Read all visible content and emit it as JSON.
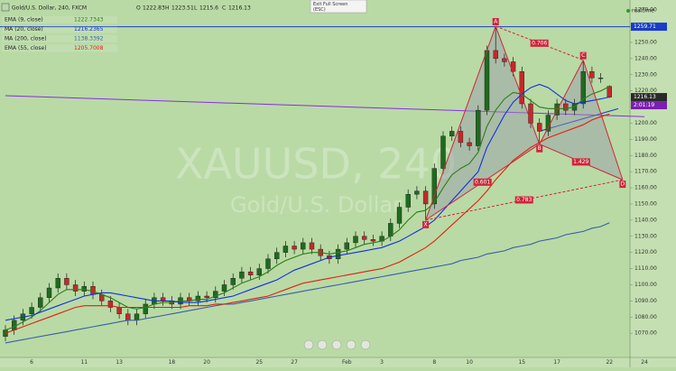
{
  "header": {
    "symbol": "Gold/U.S. Dollar, 240, FXCM",
    "open_label": "O",
    "open": 1222.83,
    "high_label": "H",
    "high": 1223.51,
    "low_label": "L",
    "low": 1215.6,
    "close_label": "C",
    "close": 1216.13,
    "tooltip": "Exit Full Screen\n(ESC)",
    "mode": "realtime"
  },
  "watermark": {
    "symbol": "XAUUSD, 240",
    "name": "Gold/U.S. Dollar"
  },
  "chart_data": {
    "type": "candlestick",
    "categories": [
      null,
      null,
      null,
      "6",
      null,
      null,
      null,
      null,
      null,
      "11",
      null,
      null,
      null,
      "13",
      null,
      null,
      null,
      null,
      null,
      "18",
      null,
      null,
      null,
      "20",
      null,
      null,
      null,
      null,
      null,
      "25",
      null,
      null,
      null,
      "27",
      null,
      null,
      null,
      null,
      null,
      "Feb",
      null,
      null,
      null,
      "3",
      null,
      null,
      null,
      null,
      null,
      "8",
      null,
      null,
      null,
      "10",
      null,
      null,
      null,
      null,
      null,
      "15",
      null,
      null,
      null,
      "17",
      null,
      null,
      null,
      null,
      null,
      "22",
      null,
      null,
      null,
      "24"
    ],
    "open": [
      1068,
      1072,
      1078,
      1082,
      1086,
      1092,
      1098,
      1104,
      1100,
      1096,
      1099,
      1094,
      1090,
      1086,
      1082,
      1078,
      1082,
      1088,
      1092,
      1090,
      1088,
      1092,
      1090,
      1093,
      1092,
      1096,
      1100,
      1104,
      1108,
      1106,
      1110,
      1116,
      1120,
      1124,
      1122,
      1126,
      1122,
      1118,
      1116,
      1122,
      1126,
      1130,
      1128,
      1127,
      1130,
      1138,
      1148,
      1156,
      1158,
      1150,
      1172,
      1192,
      1195,
      1188,
      1186,
      1208,
      1245,
      1240,
      1238,
      1232,
      1212,
      1200,
      1195,
      1205,
      1212,
      1208,
      1212,
      1232,
      1228,
      1222.83,
      null,
      null,
      null,
      null
    ],
    "high": [
      1075,
      1081,
      1085,
      1089,
      1095,
      1101,
      1107,
      1107,
      1103,
      1102,
      1102,
      1097,
      1093,
      1089,
      1085,
      1085,
      1091,
      1095,
      1095,
      1093,
      1095,
      1095,
      1096,
      1096,
      1099,
      1103,
      1107,
      1111,
      1111,
      1113,
      1119,
      1123,
      1127,
      1127,
      1129,
      1129,
      1125,
      1121,
      1125,
      1129,
      1133,
      1133,
      1131,
      1133,
      1141,
      1151,
      1159,
      1161,
      1161,
      1175,
      1195,
      1198,
      1198,
      1191,
      1211,
      1248,
      1260,
      1243,
      1241,
      1235,
      1215,
      1203,
      1208,
      1215,
      1215,
      1215,
      1239,
      1235,
      1231,
      1223.51,
      null,
      null,
      null,
      null
    ],
    "low": [
      1065,
      1069,
      1075,
      1079,
      1083,
      1089,
      1095,
      1097,
      1093,
      1093,
      1091,
      1087,
      1083,
      1079,
      1075,
      1075,
      1079,
      1085,
      1087,
      1085,
      1085,
      1087,
      1087,
      1089,
      1089,
      1093,
      1097,
      1101,
      1103,
      1103,
      1107,
      1113,
      1117,
      1119,
      1119,
      1119,
      1115,
      1113,
      1113,
      1119,
      1123,
      1125,
      1124,
      1124,
      1127,
      1135,
      1145,
      1153,
      1140,
      1147,
      1169,
      1189,
      1185,
      1183,
      1183,
      1205,
      1237,
      1235,
      1229,
      1209,
      1197,
      1187,
      1192,
      1202,
      1205,
      1205,
      1209,
      1225,
      1225,
      1215.6,
      null,
      null,
      null,
      null
    ],
    "close": [
      1072,
      1078,
      1082,
      1086,
      1092,
      1098,
      1104,
      1100,
      1096,
      1099,
      1094,
      1090,
      1086,
      1082,
      1078,
      1082,
      1088,
      1092,
      1090,
      1088,
      1092,
      1090,
      1093,
      1092,
      1096,
      1100,
      1104,
      1108,
      1106,
      1110,
      1116,
      1120,
      1124,
      1122,
      1126,
      1122,
      1118,
      1116,
      1122,
      1126,
      1130,
      1128,
      1127,
      1130,
      1138,
      1148,
      1156,
      1158,
      1150,
      1172,
      1192,
      1195,
      1188,
      1186,
      1208,
      1245,
      1240,
      1238,
      1232,
      1212,
      1200,
      1195,
      1205,
      1212,
      1208,
      1212,
      1232,
      1228,
      1228,
      1216.13,
      null,
      null,
      null,
      null
    ],
    "up_color": "#1e6b1e",
    "down_color": "#c62828",
    "series": [
      {
        "name": "EMA (9, close)",
        "color": "#2e7d1a",
        "values": [
          1072,
          1074,
          1077,
          1080,
          1084,
          1089,
          1094,
          1097,
          1097,
          1097,
          1096,
          1094,
          1092,
          1089,
          1086,
          1085,
          1086,
          1088,
          1089,
          1089,
          1090,
          1090,
          1091,
          1091,
          1093,
          1095,
          1098,
          1101,
          1103,
          1105,
          1108,
          1112,
          1115,
          1117,
          1119,
          1120,
          1120,
          1119,
          1120,
          1121,
          1123,
          1125,
          1126,
          1127,
          1130,
          1134,
          1140,
          1145,
          1146,
          1151,
          1160,
          1168,
          1172,
          1175,
          1182,
          1198,
          1208,
          1215,
          1219,
          1218,
          1214,
          1210,
          1209,
          1209,
          1209,
          1210,
          1215,
          1218,
          1220,
          1222.7343,
          null,
          null,
          null,
          null
        ]
      },
      {
        "name": "MA (20, close)",
        "color": "#1030e0",
        "values": [
          1078,
          1079,
          1080,
          1081,
          1083,
          1085,
          1087,
          1089,
          1091,
          1093,
          1094,
          1095,
          1095,
          1094,
          1093,
          1092,
          1091,
          1090,
          1090,
          1090,
          1089,
          1089,
          1089,
          1090,
          1091,
          1092,
          1093,
          1095,
          1097,
          1099,
          1101,
          1103,
          1106,
          1109,
          1111,
          1113,
          1115,
          1117,
          1118,
          1119,
          1120,
          1121,
          1122,
          1123,
          1125,
          1127,
          1130,
          1133,
          1136,
          1140,
          1146,
          1152,
          1158,
          1164,
          1170,
          1185,
          1195,
          1205,
          1213,
          1218,
          1222,
          1224,
          1222,
          1218,
          1214,
          1212,
          1213,
          1214,
          1215,
          1216.2365,
          null,
          null,
          null,
          null
        ]
      },
      {
        "name": "MA (200, close)",
        "color": "#3a5fa8",
        "values": [
          1064,
          1065,
          1066,
          1067,
          1068,
          1069,
          1070,
          1071,
          1072,
          1073,
          1074,
          1075,
          1076,
          1077,
          1078,
          1078,
          1079,
          1080,
          1081,
          1082,
          1083,
          1084,
          1085,
          1086,
          1087,
          1088,
          1088,
          1089,
          1090,
          1091,
          1092,
          1093,
          1094,
          1095,
          1096,
          1097,
          1098,
          1099,
          1100,
          1101,
          1102,
          1103,
          1104,
          1105,
          1106,
          1107,
          1108,
          1109,
          1110,
          1111,
          1112,
          1113,
          1115,
          1116,
          1117,
          1119,
          1120,
          1121,
          1123,
          1124,
          1125,
          1127,
          1128,
          1129,
          1131,
          1132,
          1133,
          1135,
          1136,
          1138.3392,
          null,
          null,
          null,
          null
        ]
      },
      {
        "name": "EMA (55, close)",
        "color": "#e02010",
        "values": [
          1070,
          1072,
          1074,
          1076,
          1078,
          1080,
          1082,
          1084,
          1086,
          1087,
          1087,
          1087,
          1087,
          1086,
          1086,
          1086,
          1086,
          1086,
          1086,
          1086,
          1086,
          1087,
          1087,
          1087,
          1088,
          1088,
          1089,
          1090,
          1091,
          1092,
          1093,
          1095,
          1097,
          1099,
          1101,
          1102,
          1103,
          1104,
          1105,
          1106,
          1107,
          1108,
          1109,
          1110,
          1112,
          1114,
          1117,
          1120,
          1123,
          1127,
          1132,
          1137,
          1142,
          1147,
          1152,
          1158,
          1165,
          1171,
          1177,
          1181,
          1185,
          1188,
          1191,
          1193,
          1195,
          1197,
          1199,
          1202,
          1204,
          1205.7008,
          null,
          null,
          null,
          null
        ]
      }
    ],
    "ylim": [
      1055,
      1274
    ],
    "yticks": [
      {
        "value": 1070,
        "label": "1070.00"
      },
      {
        "value": 1080,
        "label": "1080.00"
      },
      {
        "value": 1090,
        "label": "1090.00"
      },
      {
        "value": 1100,
        "label": "1100.00"
      },
      {
        "value": 1110,
        "label": "1110.00"
      },
      {
        "value": 1120,
        "label": "1120.00"
      },
      {
        "value": 1130,
        "label": "1130.00"
      },
      {
        "value": 1140,
        "label": "1140.00"
      },
      {
        "value": 1150,
        "label": "1150.00"
      },
      {
        "value": 1160,
        "label": "1160.00"
      },
      {
        "value": 1170,
        "label": "1170.00"
      },
      {
        "value": 1180,
        "label": "1180.00"
      },
      {
        "value": 1190,
        "label": "1190.00"
      },
      {
        "value": 1200,
        "label": "1200.00"
      },
      {
        "value": 1210,
        "label": "1210.00"
      },
      {
        "value": 1220,
        "label": "1220.00"
      },
      {
        "value": 1230,
        "label": "1230.00"
      },
      {
        "value": 1240,
        "label": "1240.00"
      },
      {
        "value": 1250,
        "label": "1250.00"
      },
      {
        "value": 1260,
        "label": "1260.00"
      },
      {
        "value": 1270,
        "label": "1270.00"
      }
    ],
    "horizontal_line": {
      "value": 1259.71,
      "color": "#1a3cc9"
    },
    "trend_lines": [
      {
        "x": [
          0,
          73
        ],
        "values": [
          1217,
          1204
        ],
        "color": "#8a2be2"
      },
      {
        "x": [
          61,
          70
        ],
        "values": [
          1195,
          1209
        ],
        "color": "#1030e0"
      }
    ],
    "pattern": {
      "color": "#d0243a",
      "points": [
        {
          "label": "X",
          "x": 48,
          "value": 1140
        },
        {
          "label": "A",
          "x": 56,
          "value": 1260
        },
        {
          "label": "B",
          "x": 61,
          "value": 1187
        },
        {
          "label": "C",
          "x": 66,
          "value": 1239
        },
        {
          "label": "D",
          "x": 70.5,
          "value": 1165
        }
      ],
      "ratios": [
        "0.706",
        "0.601",
        "1.429",
        "0.783"
      ]
    },
    "price_labels": [
      {
        "value": 1259.71,
        "color": "#1a3cc9"
      },
      {
        "value": 1216.13,
        "color": "#2a2a2a"
      }
    ],
    "countdown": "2:01:19"
  }
}
